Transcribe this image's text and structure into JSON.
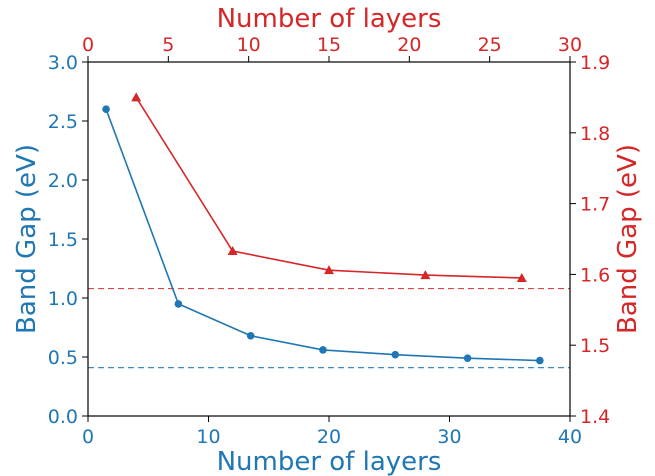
{
  "chart_data": {
    "type": "line",
    "title": "",
    "colors": {
      "bottom": "#1f77b4",
      "top": "#d62728"
    },
    "bottom_axis": {
      "xlabel": "Number of layers",
      "xlim": [
        0,
        40
      ],
      "xticks": [
        0,
        10,
        20,
        30,
        40
      ]
    },
    "top_axis": {
      "xlabel": "Number of layers",
      "xlim": [
        0,
        30
      ],
      "xticks": [
        0,
        5,
        10,
        15,
        20,
        25,
        30
      ]
    },
    "left_axis": {
      "ylabel": "Band Gap (eV)",
      "ylim": [
        0.0,
        3.0
      ],
      "yticks": [
        "0.0",
        "0.5",
        "1.0",
        "1.5",
        "2.0",
        "2.5",
        "3.0"
      ]
    },
    "right_axis": {
      "ylabel": "Band Gap (eV)",
      "ylim": [
        1.4,
        1.9
      ],
      "yticks": [
        "1.4",
        "1.5",
        "1.6",
        "1.7",
        "1.8",
        "1.9"
      ]
    },
    "series": [
      {
        "axes": "bottom-left",
        "color": "#1f77b4",
        "marker": "circle",
        "x": [
          1.5,
          7.5,
          13.5,
          19.5,
          25.5,
          31.5,
          37.5
        ],
        "y": [
          2.6,
          0.95,
          0.68,
          0.56,
          0.52,
          0.49,
          0.47
        ]
      },
      {
        "axes": "top-right",
        "color": "#d62728",
        "marker": "triangle",
        "x": [
          3,
          9,
          15,
          21,
          27
        ],
        "y": [
          1.85,
          1.633,
          1.606,
          1.599,
          1.595
        ]
      }
    ],
    "reference_lines": [
      {
        "axes": "left",
        "y": 0.41,
        "color": "#1f77b4",
        "style": "dashed"
      },
      {
        "axes": "right",
        "y": 1.58,
        "color": "#d62728",
        "style": "dashed"
      }
    ],
    "grid": false,
    "legend": "none"
  }
}
